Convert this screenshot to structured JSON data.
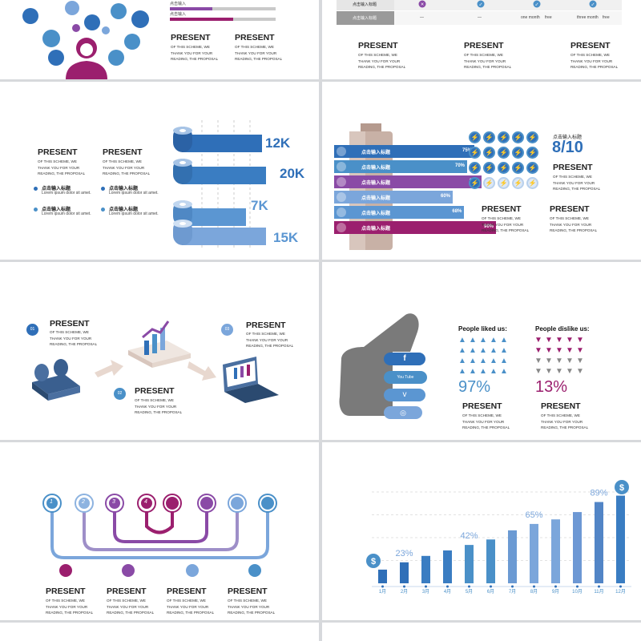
{
  "common": {
    "present": "PRESENT",
    "body": "OF THIS SCHEME, WE THANK YOU FOR YOUR READING, THE PROPOSAL",
    "cn_title": "点击输入标题",
    "lorem": "Lorem ipsum dolor sit amet."
  },
  "colors": {
    "blue": "#2f6fb8",
    "mid": "#4a90c8",
    "light": "#7ba6db",
    "purple": "#8a4aa6",
    "magenta": "#9b1f6e",
    "grey": "#707070"
  },
  "s1": {
    "bars": [
      {
        "label": "点击输入",
        "fill": 0.3
      },
      {
        "label": "点击输入",
        "fill": 0.45
      },
      {
        "label": "点击输入",
        "fill": 0.55
      }
    ]
  },
  "s2": {
    "row_label": "点击输入标题",
    "row2_label": "点击输入标题",
    "cells": [
      "—",
      "—",
      "one month",
      "free",
      "three month",
      "free"
    ]
  },
  "s3": {
    "values": [
      "12K",
      "20K",
      "7K",
      "15K"
    ]
  },
  "s4": {
    "bars": [
      {
        "label": "点击输入标题",
        "pct": "75%",
        "value": 75
      },
      {
        "label": "点击输入标题",
        "pct": "70%",
        "value": 70
      },
      {
        "label": "点击输入标题",
        "pct": "80%",
        "value": 80
      },
      {
        "label": "点击输入标题",
        "pct": "60%",
        "value": 60
      },
      {
        "label": "点击输入标题",
        "pct": "68%",
        "value": 68
      },
      {
        "label": "点击输入标题",
        "pct": "90%",
        "value": 90
      }
    ],
    "score_label": "点击输入标题",
    "score": "8/10",
    "rating": 8,
    "rating_max": 10
  },
  "s5": {
    "num1": "01",
    "num2": "02",
    "num3": "03"
  },
  "s6": {
    "like_title": "People liked us:",
    "dislike_title": "People dislike us:",
    "like_pct": "97%",
    "dislike_pct": "13%",
    "social": [
      "f",
      "You Tube",
      "v",
      "◎"
    ]
  },
  "s7": {
    "numbers": [
      "1",
      "2",
      "3",
      "4"
    ]
  },
  "chart_data": {
    "type": "bar",
    "categories": [
      "1月",
      "2月",
      "3月",
      "4月",
      "5月",
      "6月",
      "7月",
      "8月",
      "9月",
      "10月",
      "11月",
      "12月"
    ],
    "values": [
      15,
      23,
      30,
      36,
      42,
      48,
      58,
      65,
      70,
      78,
      89,
      96
    ],
    "data_labels": [
      {
        "index": 1,
        "text": "23%"
      },
      {
        "index": 4,
        "text": "42%"
      },
      {
        "index": 7,
        "text": "65%"
      },
      {
        "index": 10,
        "text": "89%"
      }
    ],
    "ylim": [
      0,
      100
    ],
    "title": "",
    "xlabel": "",
    "ylabel": "",
    "grid": true
  }
}
